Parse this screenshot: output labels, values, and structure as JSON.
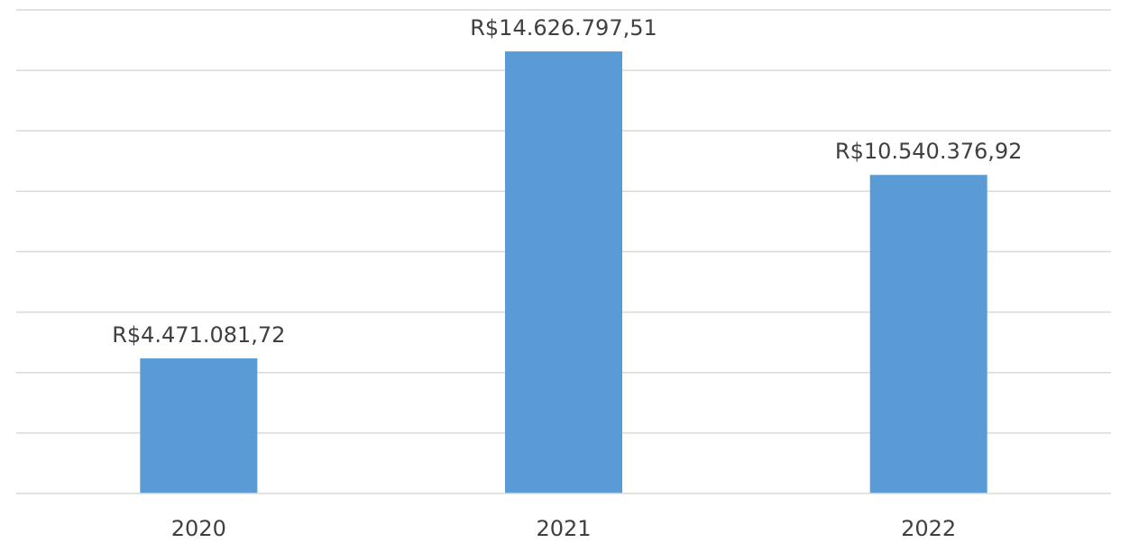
{
  "chart_data": {
    "type": "bar",
    "title": "",
    "xlabel": "",
    "ylabel": "",
    "categories": [
      "2020",
      "2021",
      "2022"
    ],
    "values": [
      4471081.72,
      14626797.51,
      10540376.92
    ],
    "data_labels": [
      "R$4.471.081,72",
      "R$14.626.797,51",
      "R$10.540.376,92"
    ],
    "ylim": [
      0,
      16000000
    ],
    "y_major_step": 2000000,
    "y_tick_labels_visible": false,
    "grid": true,
    "legend": "none",
    "bar_color": "#5b9bd5",
    "grid_color": "#d9d9d9",
    "text_color": "#404040"
  }
}
